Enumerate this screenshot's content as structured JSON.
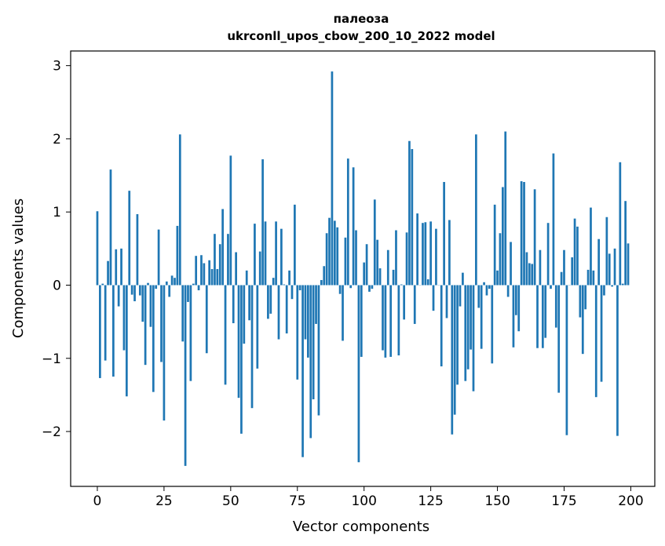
{
  "chart_data": {
    "type": "bar",
    "title_line1": "палеоза",
    "title_line2": "ukrconll_upos_cbow_200_10_2022 model",
    "xlabel": "Vector components",
    "ylabel": "Components values",
    "xlim": [
      -10,
      209
    ],
    "ylim": [
      -2.75,
      3.2
    ],
    "xticks": [
      0,
      25,
      50,
      75,
      100,
      125,
      150,
      175,
      200
    ],
    "yticks": [
      -2,
      -1,
      0,
      1,
      2,
      3
    ],
    "ytick_labels": [
      "−2",
      "−1",
      "0",
      "1",
      "2",
      "3"
    ],
    "bar_color": "#1f77b4",
    "grid": false,
    "values": [
      1.01,
      -1.27,
      0.02,
      -1.03,
      0.33,
      1.58,
      -1.25,
      0.49,
      -0.29,
      0.5,
      -0.89,
      -1.52,
      1.29,
      -0.13,
      -0.22,
      0.97,
      -0.14,
      -0.5,
      -1.09,
      0.03,
      -0.57,
      -1.46,
      -0.05,
      0.76,
      -1.05,
      -1.85,
      0.05,
      -0.16,
      0.13,
      0.1,
      0.81,
      2.06,
      -0.77,
      -2.47,
      -0.23,
      -1.31,
      0.02,
      0.4,
      -0.07,
      0.41,
      0.3,
      -0.93,
      0.34,
      0.22,
      0.7,
      0.22,
      0.56,
      1.04,
      -1.36,
      0.7,
      1.77,
      -0.52,
      0.45,
      -1.54,
      -2.03,
      -0.8,
      0.2,
      -0.48,
      -1.68,
      0.84,
      -1.14,
      0.46,
      1.72,
      0.87,
      -0.46,
      -0.39,
      0.1,
      0.87,
      -0.74,
      0.77,
      0.01,
      -0.66,
      0.2,
      -0.19,
      1.1,
      -1.29,
      -0.07,
      -2.35,
      -0.74,
      -0.99,
      -2.09,
      -1.56,
      -0.53,
      -1.78,
      0.07,
      0.26,
      0.71,
      0.92,
      2.92,
      0.88,
      0.79,
      -0.12,
      -0.76,
      0.65,
      1.73,
      -0.04,
      1.61,
      0.75,
      -2.42,
      -0.98,
      0.31,
      0.56,
      -0.09,
      -0.05,
      1.17,
      0.62,
      0.23,
      -0.89,
      -0.99,
      0.48,
      -0.98,
      0.21,
      0.75,
      -0.96,
      0.01,
      -0.47,
      0.72,
      1.97,
      1.86,
      -0.53,
      0.98,
      0.0,
      0.85,
      0.86,
      0.08,
      0.87,
      -0.35,
      0.77,
      0.0,
      -1.11,
      1.41,
      -0.45,
      0.89,
      -2.04,
      -1.77,
      -1.36,
      -0.29,
      0.17,
      -1.31,
      -1.15,
      -0.88,
      -1.45,
      2.06,
      -0.31,
      -0.87,
      0.04,
      -0.14,
      -0.05,
      -1.07,
      1.1,
      0.2,
      0.71,
      1.34,
      2.1,
      -0.16,
      0.59,
      -0.85,
      -0.41,
      -0.63,
      1.42,
      1.41,
      0.45,
      0.3,
      0.29,
      1.31,
      -0.86,
      0.48,
      -0.86,
      -0.72,
      0.85,
      -0.05,
      1.8,
      -0.58,
      -1.47,
      0.18,
      0.48,
      -2.05,
      0.0,
      0.38,
      0.91,
      0.8,
      -0.44,
      -0.94,
      -0.33,
      0.21,
      1.06,
      0.2,
      -1.53,
      0.63,
      -1.32,
      -0.14,
      0.93,
      0.43,
      -0.02,
      0.5,
      -2.06,
      1.68,
      0.02,
      1.15,
      0.57
    ]
  }
}
